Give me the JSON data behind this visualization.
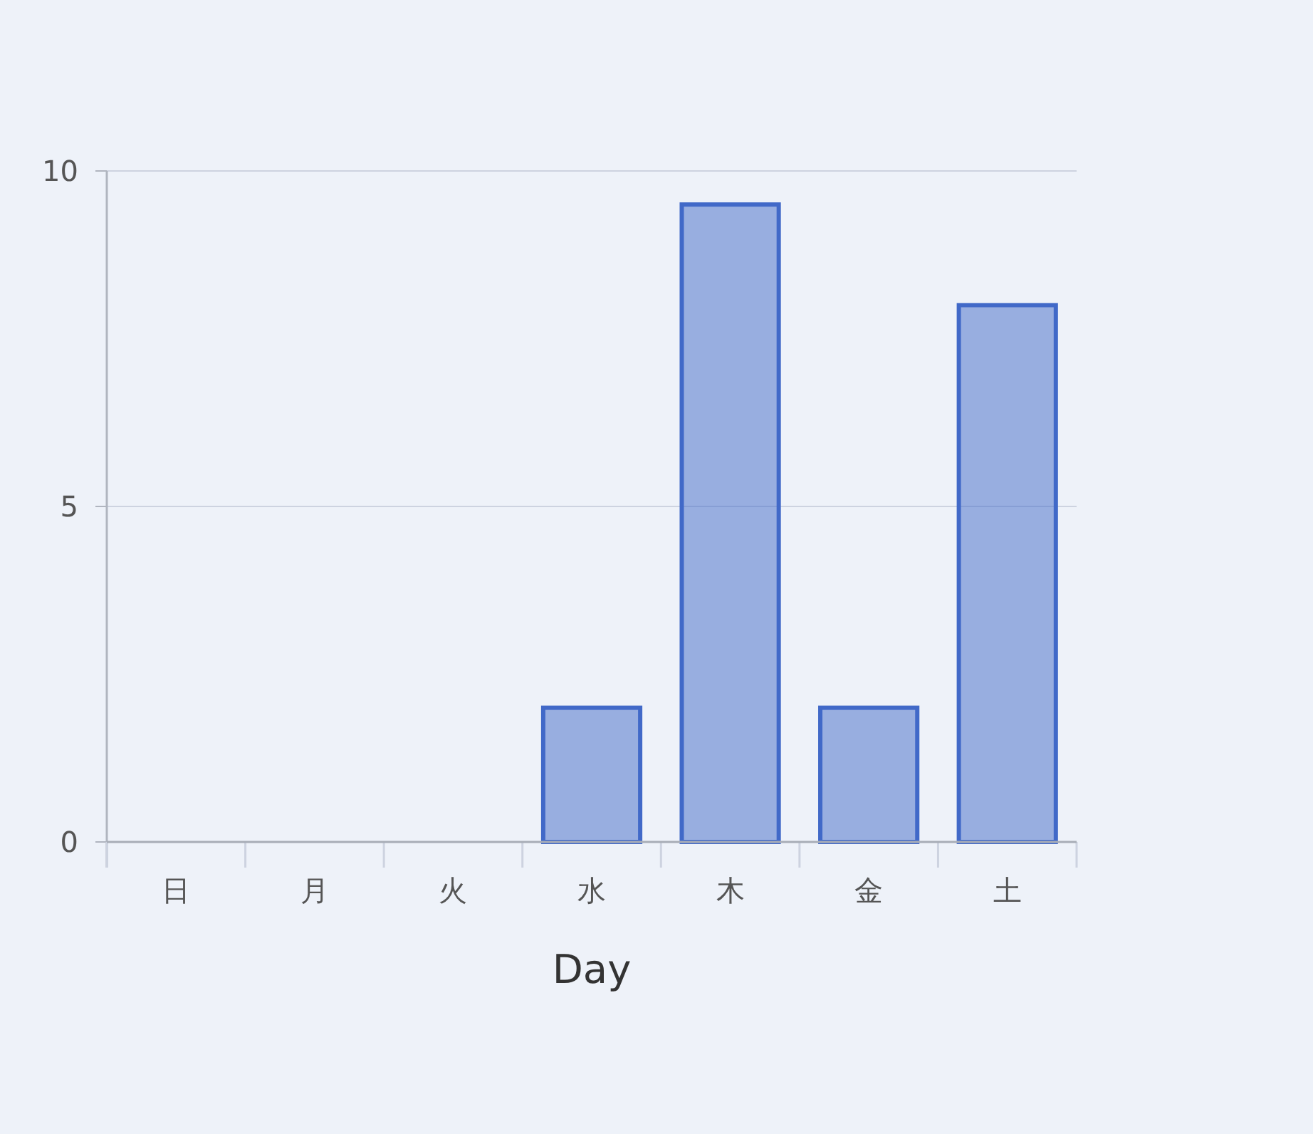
{
  "chart_data": {
    "type": "bar",
    "xlabel": "Day",
    "categories": [
      "日",
      "月",
      "火",
      "水",
      "木",
      "金",
      "土"
    ],
    "values": [
      0,
      0,
      0,
      2,
      9.5,
      2,
      8
    ],
    "color": "#4169c8",
    "ylim": [
      0,
      10
    ],
    "yticks": [
      0,
      5,
      10
    ],
    "grid": "y"
  }
}
